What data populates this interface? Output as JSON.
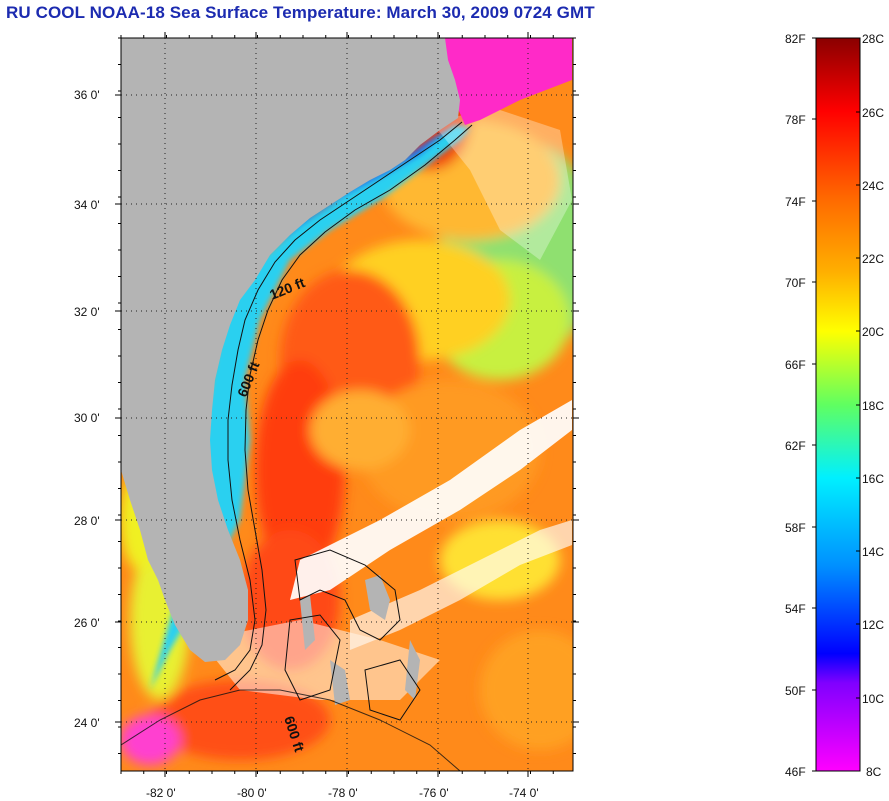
{
  "title": "RU COOL  NOAA-18  Sea Surface Temperature:  March 30, 2009 0724 GMT",
  "map": {
    "lat_labels": [
      "36 0'",
      "34 0'",
      "32 0'",
      "30 0'",
      "28 0'",
      "26 0'",
      "24 0'"
    ],
    "lon_labels": [
      "-82 0'",
      "-80 0'",
      "-78 0'",
      "-76 0'",
      "-74 0'"
    ],
    "contour_labels": [
      "120 ft",
      "600 ft",
      "600 ft"
    ],
    "colors": {
      "land": "#b4b4b4",
      "cloud": "#ffffff",
      "warm_core": "#ff3c10",
      "shelf": "#35c8f0",
      "coastal": "#1a6cf0"
    }
  },
  "colorbar": {
    "f_labels": [
      "82F",
      "78F",
      "74F",
      "70F",
      "66F",
      "62F",
      "58F",
      "54F",
      "50F",
      "46F"
    ],
    "c_labels": [
      "28C",
      "26C",
      "24C",
      "22C",
      "20C",
      "18C",
      "16C",
      "14C",
      "12C",
      "10C",
      "8C"
    ],
    "gradient_colors": [
      "#8a0000",
      "#ff0000",
      "#ff6a00",
      "#ffb000",
      "#ffff00",
      "#60ff60",
      "#00f0ff",
      "#0090ff",
      "#0000ff",
      "#8000ff",
      "#ff00ff"
    ]
  }
}
